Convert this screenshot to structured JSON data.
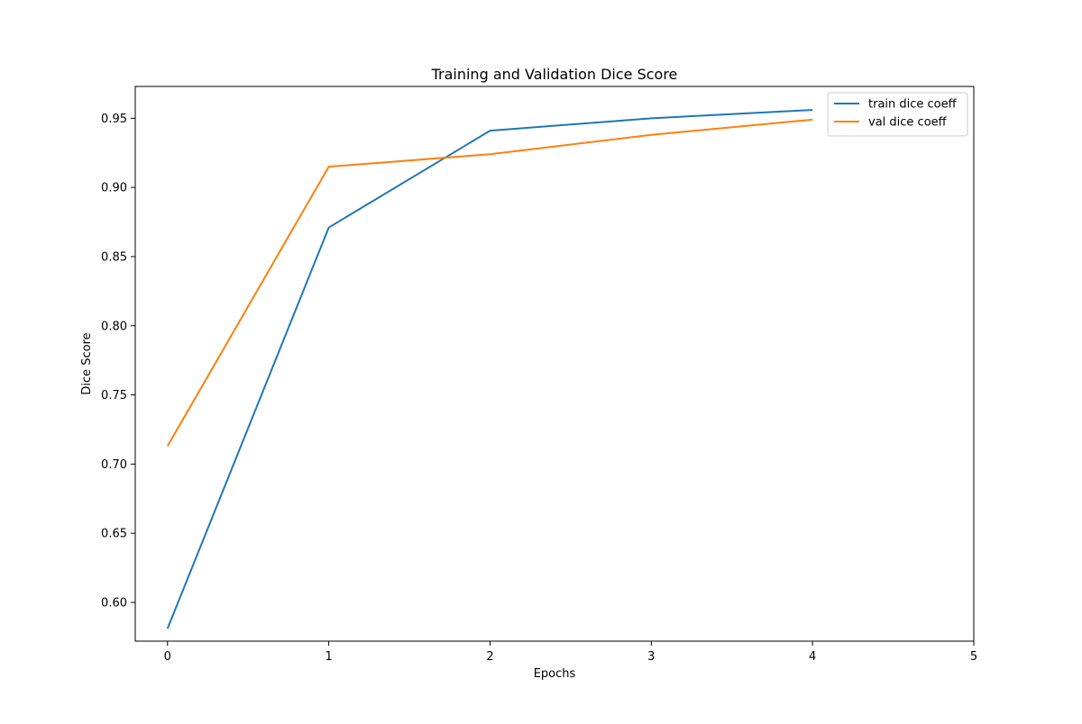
{
  "chart_data": {
    "type": "line",
    "title": "Training and Validation Dice Score",
    "xlabel": "Epochs",
    "ylabel": "Dice Score",
    "x": [
      0,
      1,
      2,
      3,
      4
    ],
    "xlim": [
      -0.2,
      5
    ],
    "ylim": [
      0.572,
      0.973
    ],
    "xticks": [
      0,
      1,
      2,
      3,
      4,
      5
    ],
    "xtick_labels": [
      "0",
      "1",
      "2",
      "3",
      "4",
      "5"
    ],
    "yticks": [
      0.6,
      0.65,
      0.7,
      0.75,
      0.8,
      0.85,
      0.9,
      0.95
    ],
    "ytick_labels": [
      "0.60",
      "0.65",
      "0.70",
      "0.75",
      "0.80",
      "0.85",
      "0.90",
      "0.95"
    ],
    "grid": false,
    "legend_position": "top-right",
    "series": [
      {
        "name": "train dice coeff",
        "color": "#1f77b4",
        "values": [
          0.581,
          0.871,
          0.941,
          0.95,
          0.956
        ]
      },
      {
        "name": "val dice coeff",
        "color": "#ff7f0e",
        "values": [
          0.713,
          0.915,
          0.924,
          0.938,
          0.949
        ]
      }
    ]
  }
}
